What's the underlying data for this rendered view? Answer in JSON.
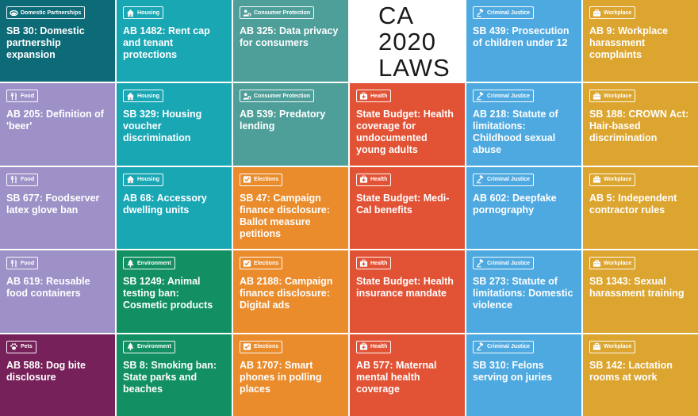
{
  "title": {
    "lines": [
      "CA",
      "2020",
      "LAWS"
    ]
  },
  "colors": {
    "domestic_partnerships": "#0d6b78",
    "housing": "#1aa7b4",
    "consumer_protection": "#4e9e99",
    "criminal_justice": "#4ea9e0",
    "workplace": "#dca52f",
    "food": "#9e91c8",
    "health": "#e25235",
    "elections": "#ea8c2c",
    "environment": "#129063",
    "pets": "#76215a"
  },
  "tiles": [
    {
      "category": "Domestic Partnerships",
      "icon": "rings-icon",
      "color": "#0d6b78",
      "text": "SB 30: Domestic partnership expansion"
    },
    {
      "category": "Housing",
      "icon": "house-icon",
      "color": "#1aa7b4",
      "text": "AB 1482: Rent cap and tenant protections"
    },
    {
      "category": "Consumer Protection",
      "icon": "person-dollar-icon",
      "color": "#4e9e99",
      "text": "AB 325: Data privacy for consumers"
    },
    {
      "title": true
    },
    {
      "category": "Criminal Justice",
      "icon": "gavel-icon",
      "color": "#4ea9e0",
      "text": "SB 439: Prosecution of children under 12"
    },
    {
      "category": "Workplace",
      "icon": "briefcase-icon",
      "color": "#dca52f",
      "text": "AB 9: Workplace harassment complaints"
    },
    {
      "category": "Food",
      "icon": "fork-knife-icon",
      "color": "#9e91c8",
      "text": "AB 205: Definition of 'beer'"
    },
    {
      "category": "Housing",
      "icon": "house-icon",
      "color": "#1aa7b4",
      "text": "SB 329: Housing voucher discrimination"
    },
    {
      "category": "Consumer Protection",
      "icon": "person-dollar-icon",
      "color": "#4e9e99",
      "text": "AB 539: Predatory lending"
    },
    {
      "category": "Health",
      "icon": "medical-kit-icon",
      "color": "#e25235",
      "text": "State Budget: Health coverage for undocumented young adults"
    },
    {
      "category": "Criminal Justice",
      "icon": "gavel-icon",
      "color": "#4ea9e0",
      "text": "AB 218: Statute of limitations: Childhood sexual abuse"
    },
    {
      "category": "Workplace",
      "icon": "briefcase-icon",
      "color": "#dca52f",
      "text": "SB 188: CROWN Act: Hair-based discrimination"
    },
    {
      "category": "Food",
      "icon": "fork-knife-icon",
      "color": "#9e91c8",
      "text": "SB 677: Foodserver latex glove ban"
    },
    {
      "category": "Housing",
      "icon": "house-icon",
      "color": "#1aa7b4",
      "text": "AB 68: Accessory dwelling units"
    },
    {
      "category": "Elections",
      "icon": "ballot-check-icon",
      "color": "#ea8c2c",
      "text": "SB 47: Campaign finance disclosure: Ballot measure petitions"
    },
    {
      "category": "Health",
      "icon": "medical-kit-icon",
      "color": "#e25235",
      "text": "State Budget: Medi-Cal benefits"
    },
    {
      "category": "Criminal Justice",
      "icon": "gavel-icon",
      "color": "#4ea9e0",
      "text": "AB 602: Deepfake pornography"
    },
    {
      "category": "Workplace",
      "icon": "briefcase-icon",
      "color": "#dca52f",
      "text": "AB 5: Independent contractor rules"
    },
    {
      "category": "Food",
      "icon": "fork-knife-icon",
      "color": "#9e91c8",
      "text": "AB 619: Reusable food containers"
    },
    {
      "category": "Environment",
      "icon": "tree-icon",
      "color": "#129063",
      "text": "SB 1249: Animal testing ban: Cosmetic products"
    },
    {
      "category": "Elections",
      "icon": "ballot-check-icon",
      "color": "#ea8c2c",
      "text": "AB 2188: Campaign finance disclosure: Digital ads"
    },
    {
      "category": "Health",
      "icon": "medical-kit-icon",
      "color": "#e25235",
      "text": "State Budget: Health insurance mandate"
    },
    {
      "category": "Criminal Justice",
      "icon": "gavel-icon",
      "color": "#4ea9e0",
      "text": "SB 273: Statute of limitations: Domestic violence"
    },
    {
      "category": "Workplace",
      "icon": "briefcase-icon",
      "color": "#dca52f",
      "text": "SB 1343: Sexual harassment training"
    },
    {
      "category": "Pets",
      "icon": "paw-icon",
      "color": "#76215a",
      "text": "AB 588: Dog bite disclosure"
    },
    {
      "category": "Environment",
      "icon": "tree-icon",
      "color": "#129063",
      "text": "SB 8: Smoking ban: State parks and beaches"
    },
    {
      "category": "Elections",
      "icon": "ballot-check-icon",
      "color": "#ea8c2c",
      "text": "AB 1707: Smart phones in polling places"
    },
    {
      "category": "Health",
      "icon": "medical-kit-icon",
      "color": "#e25235",
      "text": "AB 577: Maternal mental health coverage"
    },
    {
      "category": "Criminal Justice",
      "icon": "gavel-icon",
      "color": "#4ea9e0",
      "text": "SB 310: Felons serving on juries"
    },
    {
      "category": "Workplace",
      "icon": "briefcase-icon",
      "color": "#dca52f",
      "text": "SB 142: Lactation rooms at work"
    }
  ]
}
